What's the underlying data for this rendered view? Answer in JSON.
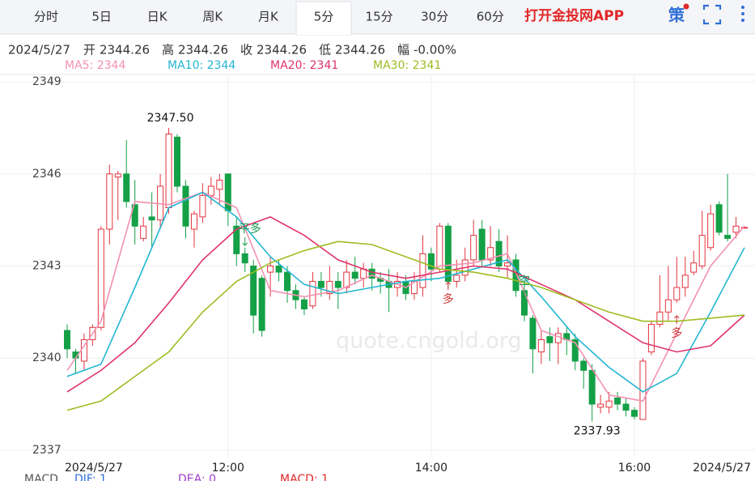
{
  "chart_data": {
    "type": "candlestick",
    "tabs": [
      {
        "label": "分时"
      },
      {
        "label": "5日"
      },
      {
        "label": "日K"
      },
      {
        "label": "周K"
      },
      {
        "label": "月K"
      },
      {
        "label": "5分",
        "active": true
      },
      {
        "label": "15分"
      },
      {
        "label": "30分"
      },
      {
        "label": "60分"
      }
    ],
    "app_link": "打开金投网APP",
    "strategy": "策",
    "info": {
      "date": "2024/5/27",
      "items": [
        {
          "label": "开",
          "value": "2344.26"
        },
        {
          "label": "高",
          "value": "2344.26"
        },
        {
          "label": "收",
          "value": "2344.26"
        },
        {
          "label": "低",
          "value": "2344.26"
        },
        {
          "label": "幅",
          "value": "-0.00%"
        }
      ]
    },
    "categories": [
      "2024/5/27",
      null,
      null,
      null,
      null,
      null,
      null,
      null,
      null,
      null,
      null,
      null,
      null,
      null,
      null,
      null,
      null,
      null,
      null,
      "12:00",
      null,
      null,
      null,
      null,
      null,
      null,
      null,
      null,
      null,
      null,
      null,
      null,
      null,
      null,
      null,
      null,
      null,
      null,
      null,
      null,
      null,
      null,
      null,
      "14:00",
      null,
      null,
      null,
      null,
      null,
      null,
      null,
      null,
      null,
      null,
      null,
      null,
      null,
      null,
      null,
      null,
      null,
      null,
      null,
      null,
      null,
      null,
      null,
      "16:00",
      null,
      null,
      null,
      null,
      null,
      null,
      null,
      null,
      null,
      null,
      null,
      null,
      "2024/5/27"
    ],
    "open": [
      2340.9,
      2340.2,
      2339.9,
      2340.6,
      2341.0,
      2344.2,
      2345.9,
      2346.0,
      2345.0,
      2343.9,
      2344.6,
      2344.5,
      2344.9,
      2347.2,
      2345.6,
      2344.2,
      2344.6,
      2345.3,
      2345.5,
      2346.0,
      2344.3,
      2343.4,
      2343.0,
      2342.6,
      2342.8,
      2343.0,
      2342.8,
      2342.2,
      2341.9,
      2341.7,
      2342.5,
      2342.1,
      2342.5,
      2342.3,
      2342.8,
      2342.6,
      2342.9,
      2342.6,
      2342.5,
      2342.3,
      2342.5,
      2342.1,
      2342.3,
      2343.4,
      2342.9,
      2344.3,
      2342.5,
      2342.7,
      2343.2,
      2344.2,
      2343.2,
      2343.8,
      2343.0,
      2343.2,
      2342.2,
      2341.3,
      2340.2,
      2340.7,
      2340.5,
      2340.8,
      2340.6,
      2339.9,
      2339.6,
      2338.4,
      2338.4,
      2338.7,
      2338.5,
      2338.3,
      2338.0,
      2340.2,
      2341.1,
      2341.5,
      2341.9,
      2342.3,
      2342.8,
      2343.0,
      2343.6,
      2345.0,
      2344.0,
      2344.1,
      2344.26
    ],
    "high": [
      2341.1,
      2340.3,
      2340.8,
      2341.1,
      2344.3,
      2346.3,
      2346.1,
      2347.1,
      2345.8,
      2344.6,
      2345.4,
      2346.0,
      2347.5,
      2347.3,
      2345.8,
      2344.8,
      2345.7,
      2345.9,
      2346.0,
      2346.0,
      2344.6,
      2343.6,
      2343.2,
      2342.7,
      2343.3,
      2343.2,
      2343.0,
      2342.4,
      2342.0,
      2342.8,
      2342.8,
      2343.0,
      2342.8,
      2343.2,
      2343.3,
      2343.1,
      2343.1,
      2342.8,
      2342.9,
      2342.8,
      2342.7,
      2342.8,
      2344.0,
      2343.6,
      2344.4,
      2344.4,
      2343.2,
      2343.6,
      2344.5,
      2344.5,
      2344.3,
      2344.2,
      2344.0,
      2343.4,
      2342.4,
      2341.4,
      2340.9,
      2341.0,
      2341.0,
      2341.0,
      2340.8,
      2340.0,
      2339.8,
      2338.8,
      2338.9,
      2338.9,
      2338.7,
      2338.4,
      2340.0,
      2341.2,
      2342.7,
      2343.0,
      2343.3,
      2343.3,
      2343.5,
      2344.8,
      2345.0,
      2345.1,
      2346.0,
      2344.6,
      2344.26
    ],
    "low": [
      2340.0,
      2339.5,
      2339.6,
      2340.4,
      2340.9,
      2343.7,
      2344.5,
      2344.9,
      2343.7,
      2343.8,
      2343.6,
      2344.2,
      2344.7,
      2345.4,
      2343.9,
      2343.6,
      2344.4,
      2345.0,
      2345.0,
      2344.3,
      2343.0,
      2342.8,
      2340.8,
      2340.7,
      2342.0,
      2342.5,
      2341.8,
      2341.6,
      2341.4,
      2341.6,
      2342.0,
      2341.9,
      2341.6,
      2342.1,
      2342.4,
      2342.3,
      2342.2,
      2342.1,
      2341.5,
      2342.0,
      2341.9,
      2341.9,
      2342.0,
      2342.5,
      2342.8,
      2342.3,
      2342.3,
      2342.5,
      2343.0,
      2343.0,
      2343.0,
      2342.8,
      2342.6,
      2342.0,
      2341.2,
      2339.5,
      2339.8,
      2339.9,
      2339.8,
      2340.1,
      2339.6,
      2339.0,
      2337.93,
      2338.2,
      2338.2,
      2338.3,
      2338.1,
      2338.0,
      2338.0,
      2340.1,
      2341.0,
      2341.2,
      2341.8,
      2342.0,
      2342.7,
      2342.9,
      2343.5,
      2344.0,
      2343.8,
      2343.9,
      2344.26
    ],
    "close": [
      2340.3,
      2340.0,
      2340.6,
      2341.0,
      2344.2,
      2346.0,
      2346.0,
      2345.1,
      2344.3,
      2344.3,
      2344.5,
      2345.6,
      2347.3,
      2345.6,
      2344.3,
      2344.7,
      2345.3,
      2345.6,
      2345.8,
      2344.8,
      2343.4,
      2343.1,
      2341.4,
      2340.9,
      2343.0,
      2342.8,
      2342.2,
      2341.9,
      2341.6,
      2342.5,
      2342.3,
      2342.5,
      2342.3,
      2342.8,
      2342.6,
      2342.9,
      2342.6,
      2342.5,
      2342.3,
      2342.5,
      2342.1,
      2342.5,
      2343.4,
      2342.9,
      2344.3,
      2342.5,
      2342.7,
      2343.2,
      2344.0,
      2343.2,
      2343.6,
      2343.0,
      2343.1,
      2342.2,
      2341.4,
      2340.3,
      2340.6,
      2340.5,
      2340.8,
      2340.6,
      2339.9,
      2339.6,
      2338.5,
      2338.5,
      2338.6,
      2338.5,
      2338.3,
      2338.1,
      2339.9,
      2341.1,
      2341.5,
      2341.9,
      2342.3,
      2342.7,
      2343.1,
      2344.0,
      2344.7,
      2344.1,
      2343.9,
      2344.3,
      2344.26
    ],
    "up_color": "#e2343e",
    "down_color": "#14a046",
    "high_label": "2347.50",
    "low_label": "2337.93",
    "lines": [
      {
        "name": "MA5: 2344",
        "color": "#f391b3",
        "x": [
          0,
          4,
          8,
          12,
          16,
          20,
          24,
          28,
          32,
          36,
          40,
          44,
          48,
          52,
          56,
          60,
          64,
          68,
          72,
          76,
          80
        ],
        "values": [
          2339.6,
          2341.2,
          2345.1,
          2345.0,
          2345.4,
          2344.9,
          2342.2,
          2342.0,
          2342.2,
          2342.7,
          2342.3,
          2343.0,
          2343.1,
          2343.4,
          2340.9,
          2340.5,
          2338.8,
          2338.6,
          2340.8,
          2343.0,
          2344.3
        ]
      },
      {
        "name": "MA10: 2344",
        "color": "#22b6d2",
        "x": [
          0,
          4,
          8,
          12,
          16,
          20,
          24,
          28,
          32,
          36,
          40,
          44,
          48,
          52,
          56,
          60,
          64,
          68,
          72,
          76,
          80
        ],
        "values": [
          2339.4,
          2339.8,
          2342.3,
          2344.9,
          2345.4,
          2344.6,
          2343.3,
          2342.4,
          2342.1,
          2342.3,
          2342.5,
          2342.6,
          2342.9,
          2343.2,
          2342.0,
          2340.7,
          2339.7,
          2338.9,
          2339.5,
          2341.5,
          2343.6
        ]
      },
      {
        "name": "MA20: 2341",
        "color": "#e0336a",
        "x": [
          0,
          4,
          8,
          12,
          16,
          20,
          24,
          28,
          32,
          36,
          40,
          44,
          48,
          52,
          56,
          60,
          64,
          68,
          72,
          76,
          80
        ],
        "values": [
          2338.9,
          2339.6,
          2340.5,
          2341.8,
          2343.2,
          2344.2,
          2344.6,
          2344.0,
          2343.2,
          2342.8,
          2342.6,
          2342.8,
          2343.0,
          2342.9,
          2342.4,
          2341.9,
          2341.2,
          2340.5,
          2340.2,
          2340.4,
          2341.4
        ]
      },
      {
        "name": "MA30: 2341",
        "color": "#9cbd22",
        "x": [
          0,
          4,
          8,
          12,
          16,
          20,
          24,
          28,
          32,
          36,
          40,
          44,
          48,
          52,
          56,
          60,
          64,
          68,
          72,
          76,
          80
        ],
        "values": [
          2338.3,
          2338.6,
          2339.4,
          2340.2,
          2341.5,
          2342.5,
          2343.1,
          2343.5,
          2343.8,
          2343.7,
          2343.3,
          2342.9,
          2342.8,
          2342.6,
          2342.3,
          2341.9,
          2341.5,
          2341.2,
          2341.2,
          2341.3,
          2341.4
        ]
      }
    ],
    "signals": [
      {
        "text": "平多",
        "x": 21,
        "y": 2344.2,
        "dir": "down"
      },
      {
        "text": "多",
        "x": 45,
        "y": 2341.9,
        "dir": "up"
      },
      {
        "text": "空",
        "x": 54,
        "y": 2342.5,
        "dir": "down"
      },
      {
        "text": "多",
        "x": 72,
        "y": 2340.8,
        "dir": "up"
      }
    ],
    "ylim": [
      2336.76,
      2349.24
    ],
    "yticks": [
      2337,
      2340,
      2343,
      2346,
      2349
    ],
    "grid": true,
    "watermark": "quote.cngold.org",
    "macd": {
      "title": "MACD",
      "dif": "DIF: 1",
      "dea": "DEA: 0",
      "macd": "MACD: 1"
    }
  }
}
